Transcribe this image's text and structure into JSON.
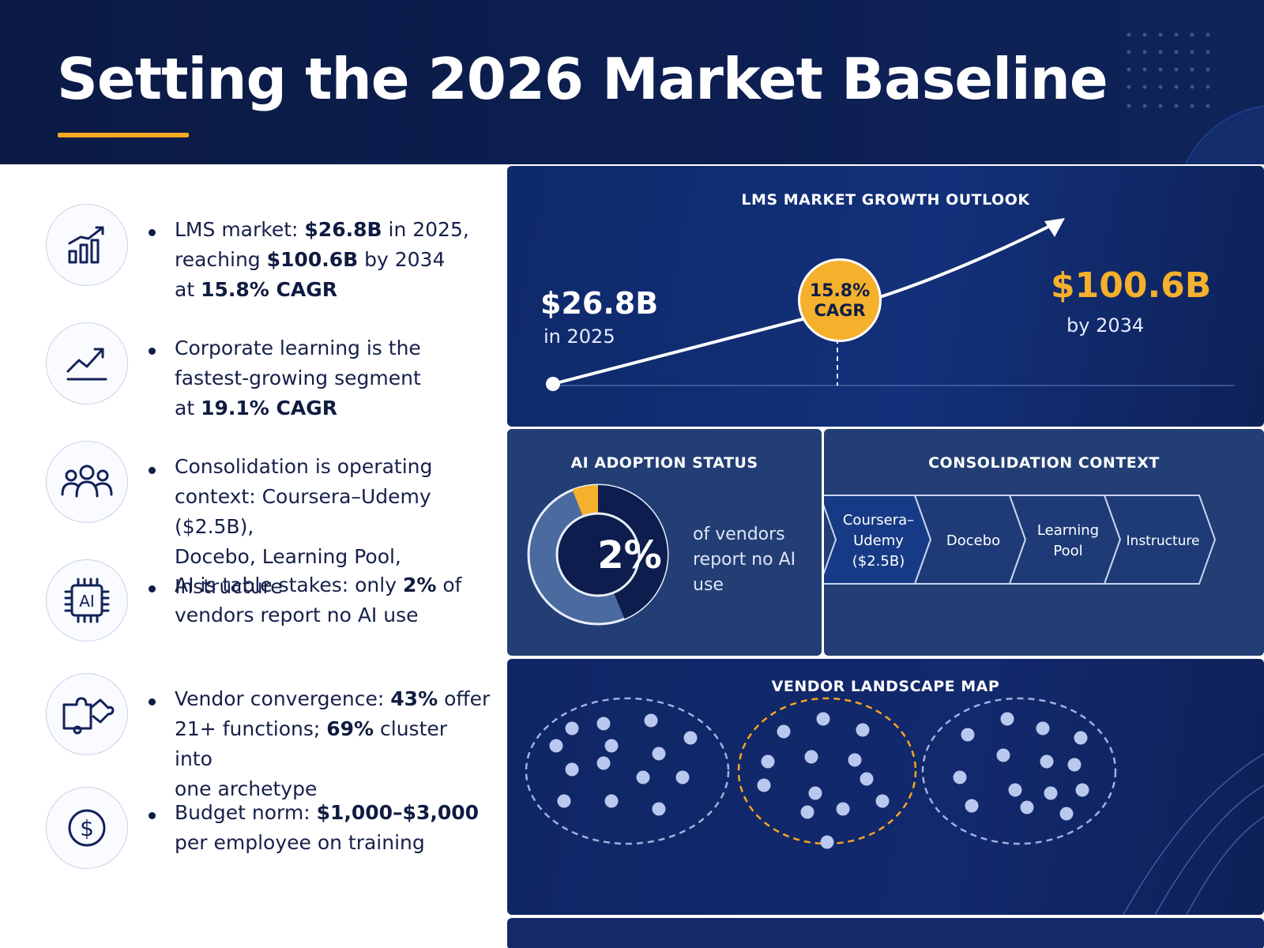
{
  "header": {
    "title": "Setting the 2026 Market Baseline"
  },
  "facts": [
    {
      "icon": "bar-chart-icon",
      "lines": [
        [
          "LMS market: ",
          {
            "b": "$26.8B"
          },
          " in 2025,"
        ],
        [
          "reaching ",
          {
            "b": "$100.6B"
          },
          " by 2034"
        ],
        [
          "at ",
          {
            "b": "15.8% CAGR"
          }
        ]
      ]
    },
    {
      "icon": "trend-up-icon",
      "lines": [
        [
          "Corporate learning is the"
        ],
        [
          "fastest-growing segment"
        ],
        [
          "at ",
          {
            "b": "19.1% CAGR"
          }
        ]
      ]
    },
    {
      "icon": "people-icon",
      "lines": [
        [
          "Consolidation is operating"
        ],
        [
          "context: Coursera–Udemy ($2.5B),"
        ],
        [
          "Docebo, Learning Pool, Instructure"
        ]
      ]
    },
    {
      "icon": "ai-chip-icon",
      "lines": [
        [
          "AI is table stakes: only ",
          {
            "b": "2%"
          },
          " of"
        ],
        [
          "vendors report no AI use"
        ]
      ]
    },
    {
      "icon": "puzzle-icon",
      "lines": [
        [
          "Vendor convergence: ",
          {
            "b": "43%"
          },
          " offer"
        ],
        [
          "21+ functions; ",
          {
            "b": "69%"
          },
          " cluster into"
        ],
        [
          "one archetype"
        ]
      ]
    },
    {
      "icon": "dollar-icon",
      "lines": [
        [
          "Budget norm: ",
          {
            "b": "$1,000–$3,000"
          }
        ],
        [
          "per employee on training"
        ]
      ]
    }
  ],
  "growth": {
    "title": "LMS MARKET GROWTH OUTLOOK",
    "start_value": "$26.8B",
    "start_label": "in 2025",
    "badge_value": "15.8%",
    "badge_label": "CAGR",
    "end_value": "$100.6B",
    "end_label": "by 2034"
  },
  "ai_adoption": {
    "title": "AI ADOPTION STATUS",
    "value": "2%",
    "share": 0.02,
    "description": "of vendors report no AI use"
  },
  "consolidation": {
    "title": "CONSOLIDATION CONTEXT",
    "steps": [
      [
        "Coursera–",
        "Udemy",
        "($2.5B)"
      ],
      [
        "Docebo"
      ],
      [
        "Learning",
        "Pool"
      ],
      [
        "Instructure"
      ]
    ]
  },
  "vendor_map": {
    "title": "VENDOR LANDSCAPE MAP",
    "clusters": [
      {
        "points": 14,
        "highlight": false
      },
      {
        "points": 13,
        "highlight": true
      },
      {
        "points": 14,
        "highlight": false
      }
    ]
  },
  "colors": {
    "navy": "#0b1a45",
    "accent": "#f5a623",
    "panel_blue": "#13307a",
    "dot": "#b9c8ee"
  }
}
